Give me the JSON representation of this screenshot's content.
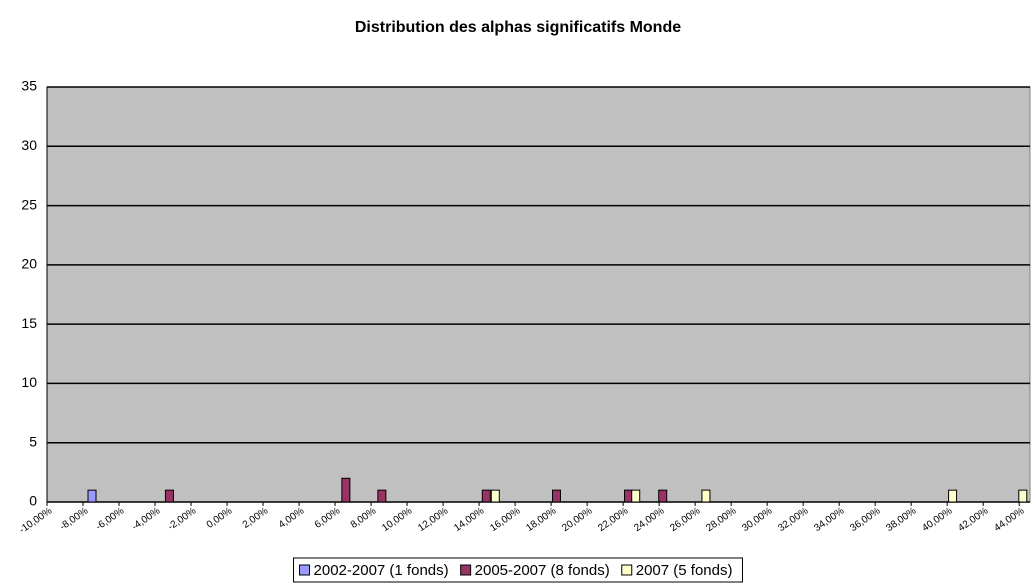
{
  "chart_data": {
    "type": "bar",
    "title": "Distribution des alphas significatifs Monde",
    "series": [
      {
        "name": "2002-2007 (1 fonds)",
        "color": "#9999ff",
        "x": [
          -7.5
        ],
        "values": [
          1
        ]
      },
      {
        "name": "2005-2007 (8 fonds)",
        "color": "#993366",
        "x": [
          -3.2,
          6.6,
          8.6,
          14.4,
          18.3,
          22.3,
          24.2
        ],
        "values": [
          1,
          2,
          1,
          1,
          1,
          1,
          1
        ]
      },
      {
        "name": "2007 (5 fonds)",
        "color": "#ffffcc",
        "x": [
          14.9,
          22.7,
          26.6,
          40.3,
          44.2
        ],
        "values": [
          1,
          1,
          1,
          1,
          1
        ]
      }
    ],
    "xlim": [
      -10,
      44.6
    ],
    "xticks": [
      {
        "value": -10,
        "label": "-10,00%"
      },
      {
        "value": -8,
        "label": "-8,00%"
      },
      {
        "value": -6,
        "label": "-6,00%"
      },
      {
        "value": -4,
        "label": "-4,00%"
      },
      {
        "value": -2,
        "label": "-2,00%"
      },
      {
        "value": 0,
        "label": "0,00%"
      },
      {
        "value": 2,
        "label": "2,00%"
      },
      {
        "value": 4,
        "label": "4,00%"
      },
      {
        "value": 6,
        "label": "6,00%"
      },
      {
        "value": 8,
        "label": "8,00%"
      },
      {
        "value": 10,
        "label": "10,00%"
      },
      {
        "value": 12,
        "label": "12,00%"
      },
      {
        "value": 14,
        "label": "14,00%"
      },
      {
        "value": 16,
        "label": "16,00%"
      },
      {
        "value": 18,
        "label": "18,00%"
      },
      {
        "value": 20,
        "label": "20,00%"
      },
      {
        "value": 22,
        "label": "22,00%"
      },
      {
        "value": 24,
        "label": "24,00%"
      },
      {
        "value": 26,
        "label": "26,00%"
      },
      {
        "value": 28,
        "label": "28,00%"
      },
      {
        "value": 30,
        "label": "30,00%"
      },
      {
        "value": 32,
        "label": "32,00%"
      },
      {
        "value": 34,
        "label": "34,00%"
      },
      {
        "value": 36,
        "label": "36,00%"
      },
      {
        "value": 38,
        "label": "38,00%"
      },
      {
        "value": 40,
        "label": "40,00%"
      },
      {
        "value": 42,
        "label": "42,00%"
      },
      {
        "value": 44,
        "label": "44,00%"
      }
    ],
    "ylim": [
      0,
      35
    ],
    "yticks": [
      0,
      5,
      10,
      15,
      20,
      25,
      30,
      35
    ],
    "grid": true,
    "legend": "bottom"
  }
}
